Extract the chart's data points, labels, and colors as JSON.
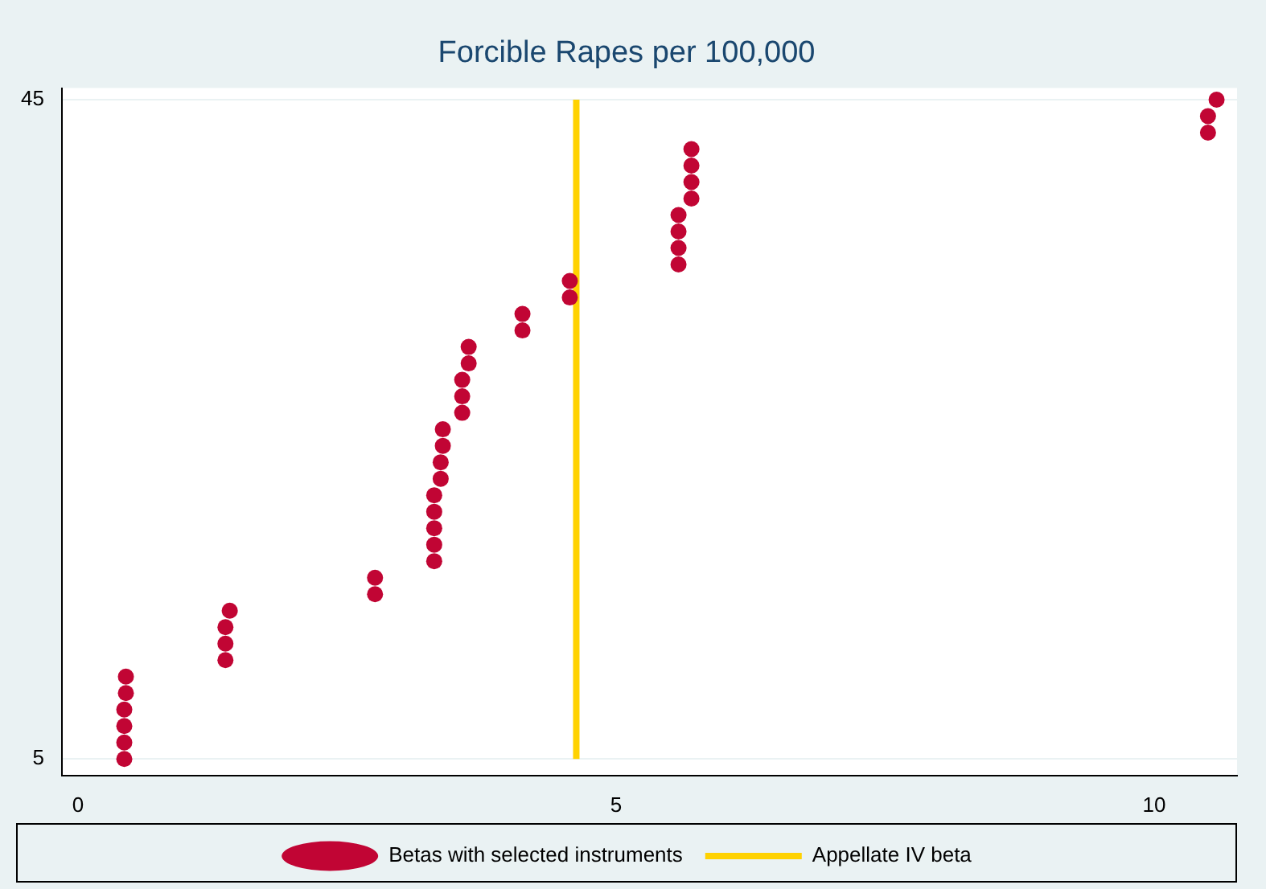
{
  "chart_data": {
    "type": "scatter",
    "title": "Forcible Rapes per 100,000",
    "series": [
      {
        "name": "Betas with selected instruments",
        "color": "#c10534",
        "marker": "circle",
        "x": [
          0.43,
          0.43,
          0.43,
          0.43,
          0.445,
          0.445,
          1.37,
          1.37,
          1.37,
          1.41,
          2.76,
          2.76,
          3.31,
          3.31,
          3.31,
          3.31,
          3.31,
          3.37,
          3.37,
          3.39,
          3.39,
          3.57,
          3.57,
          3.57,
          3.63,
          3.63,
          4.13,
          4.13,
          4.57,
          4.57,
          5.58,
          5.58,
          5.58,
          5.58,
          5.7,
          5.7,
          5.7,
          5.7,
          10.5,
          10.5,
          10.58
        ],
        "values": [
          5,
          6,
          7,
          8,
          9,
          10,
          11,
          12,
          13,
          14,
          15,
          16,
          17,
          18,
          19,
          20,
          21,
          22,
          23,
          24,
          25,
          26,
          27,
          28,
          29,
          30,
          31,
          32,
          33,
          34,
          35,
          36,
          37,
          38,
          39,
          40,
          41,
          42,
          43,
          44,
          45
        ]
      },
      {
        "name": "Appellate IV beta",
        "color": "#ffd200",
        "type": "line",
        "marker": "none",
        "x": [
          4.63,
          4.63
        ],
        "values": [
          5,
          45
        ]
      }
    ],
    "xlim": [
      -0.15,
      10.77
    ],
    "xticks": [
      0,
      5,
      10
    ],
    "ylim": [
      4,
      45.7
    ],
    "yticks": [
      5,
      45
    ],
    "grid": "y",
    "legend": "bottom"
  }
}
